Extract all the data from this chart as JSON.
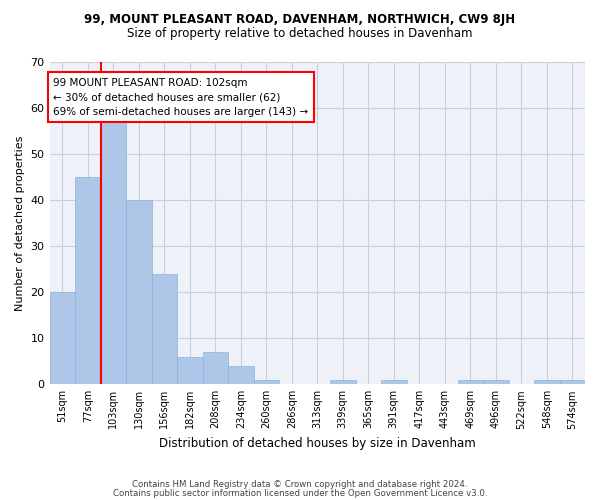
{
  "title1": "99, MOUNT PLEASANT ROAD, DAVENHAM, NORTHWICH, CW9 8JH",
  "title2": "Size of property relative to detached houses in Davenham",
  "xlabel": "Distribution of detached houses by size in Davenham",
  "ylabel": "Number of detached properties",
  "bar_values": [
    20,
    45,
    58,
    40,
    24,
    6,
    7,
    4,
    1,
    0,
    0,
    1,
    0,
    1,
    0,
    0,
    1,
    1,
    0,
    1,
    1
  ],
  "categories": [
    "51sqm",
    "77sqm",
    "103sqm",
    "130sqm",
    "156sqm",
    "182sqm",
    "208sqm",
    "234sqm",
    "260sqm",
    "286sqm",
    "313sqm",
    "339sqm",
    "365sqm",
    "391sqm",
    "417sqm",
    "443sqm",
    "469sqm",
    "496sqm",
    "522sqm",
    "548sqm",
    "574sqm"
  ],
  "bar_color": "#aec6e8",
  "bar_edge_color": "#8ab4d8",
  "annotation_text": "99 MOUNT PLEASANT ROAD: 102sqm\n← 30% of detached houses are smaller (62)\n69% of semi-detached houses are larger (143) →",
  "annotation_box_color": "white",
  "annotation_box_edge": "red",
  "vline_color": "red",
  "vline_x_index": 2.0,
  "ylim": [
    0,
    70
  ],
  "yticks": [
    0,
    10,
    20,
    30,
    40,
    50,
    60,
    70
  ],
  "footer1": "Contains HM Land Registry data © Crown copyright and database right 2024.",
  "footer2": "Contains public sector information licensed under the Open Government Licence v3.0.",
  "background_color": "#eef2f8",
  "grid_color": "#c5cfe0"
}
